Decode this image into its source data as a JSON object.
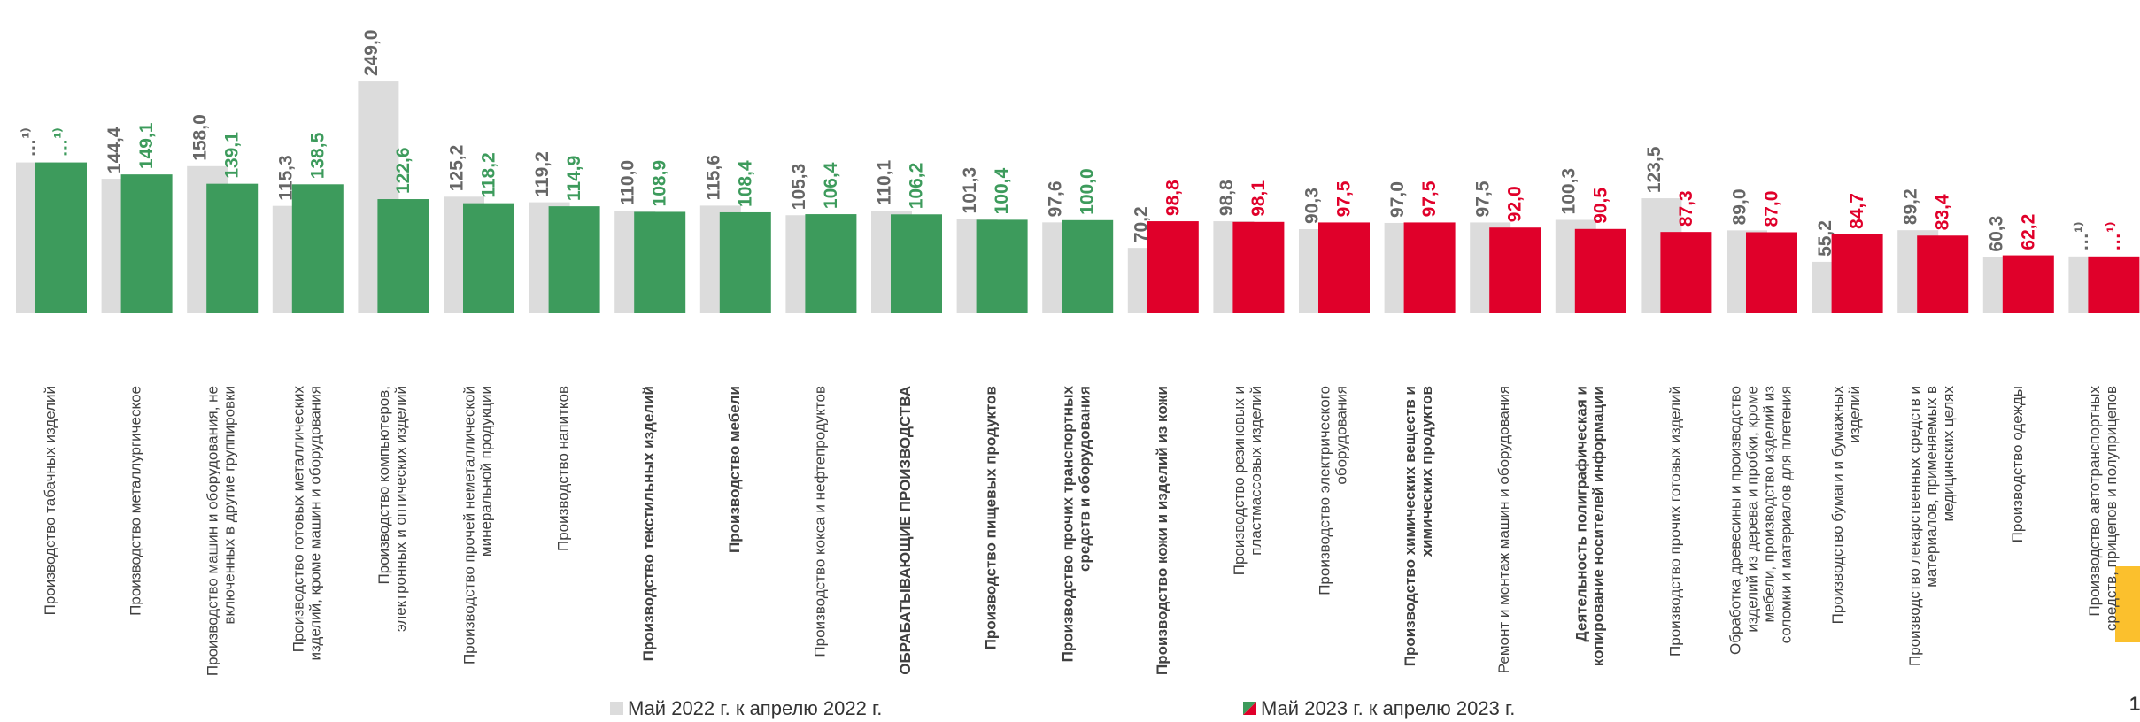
{
  "chart_data": {
    "type": "bar",
    "categories": [
      "Производство табачных изделий",
      "Производство металлургическое",
      "Производство машин и оборудования, не включенных в другие группировки",
      "Производство готовых металлических изделий, кроме машин и оборудования",
      "Производство компьютеров, электронных и оптических изделий",
      "Производство прочей неметаллической минеральной продукции",
      "Производство напитков",
      "Производство текстильных изделий",
      "Производство мебели",
      "Производство кокса и нефтепродуктов",
      "ОБРАБАТЫВАЮЩИЕ ПРОИЗВОДСТВА",
      "Производство пищевых продуктов",
      "Производство прочих транспортных средств и оборудования",
      "Производство кожи и изделий из кожи",
      "Производство резиновых и пластмассовых изделий",
      "Производство электрического оборудования",
      "Производство химических веществ и химических продуктов",
      "Ремонт и монтаж машин и оборудования",
      "Деятельность полиграфическая и копирование носителей информации",
      "Производство прочих готовых изделий",
      "Обработка древесины и производство изделий из дерева и пробки, кроме мебели, производство изделий из соломки и материалов для плетения",
      "Производство бумаги и бумажных изделий",
      "Производство лекарственных средств и материалов, применяемых в медицинских целях",
      "Производство одежды",
      "Производство автотранспортных средств, прицепов и полуприцепов"
    ],
    "bold_categories": [
      7,
      8,
      10,
      11,
      12,
      13,
      16,
      18
    ],
    "series": [
      {
        "name": "Май 2022 г. к апрелю 2022 г.",
        "color": "#dcdcdc",
        "label_color": "#666666",
        "values": [
          162,
          144.4,
          158.0,
          115.3,
          249.0,
          125.2,
          119.2,
          110.0,
          115.6,
          105.3,
          110.1,
          101.3,
          97.6,
          70.2,
          98.8,
          90.3,
          97.0,
          97.5,
          100.3,
          123.5,
          89.0,
          55.2,
          89.2,
          60.3,
          61
        ],
        "value_labels": [
          "…¹⁾",
          "144,4",
          "158,0",
          "115,3",
          "249,0",
          "125,2",
          "119,2",
          "110,0",
          "115,6",
          "105,3",
          "110,1",
          "101,3",
          "97,6",
          "70,2",
          "98,8",
          "90,3",
          "97,0",
          "97,5",
          "100,3",
          "123,5",
          "89,0",
          "55,2",
          "89,2",
          "60,3",
          "…¹⁾"
        ]
      },
      {
        "name": "Май 2023 г. к апрелю 2023 г.",
        "colors": [
          "#3d9b5c",
          "#3d9b5c",
          "#3d9b5c",
          "#3d9b5c",
          "#3d9b5c",
          "#3d9b5c",
          "#3d9b5c",
          "#3d9b5c",
          "#3d9b5c",
          "#3d9b5c",
          "#3d9b5c",
          "#3d9b5c",
          "#3d9b5c",
          "#e0002a",
          "#e0002a",
          "#e0002a",
          "#e0002a",
          "#e0002a",
          "#e0002a",
          "#e0002a",
          "#e0002a",
          "#e0002a",
          "#e0002a",
          "#e0002a",
          "#e0002a"
        ],
        "values": [
          162,
          149.1,
          139.1,
          138.5,
          122.6,
          118.2,
          114.9,
          108.9,
          108.4,
          106.4,
          106.2,
          100.4,
          100.0,
          98.8,
          98.1,
          97.5,
          97.5,
          92.0,
          90.5,
          87.3,
          87.0,
          84.7,
          83.4,
          62.2,
          61
        ],
        "value_labels": [
          "…¹⁾",
          "149,1",
          "139,1",
          "138,5",
          "122,6",
          "118,2",
          "114,9",
          "108,9",
          "108,4",
          "106,4",
          "106,2",
          "100,4",
          "100,0",
          "98,8",
          "98,1",
          "97,5",
          "97,5",
          "92,0",
          "90,5",
          "87,3",
          "87,0",
          "84,7",
          "83,4",
          "62,2",
          "…¹⁾"
        ]
      }
    ],
    "ylim": [
      0,
      250
    ],
    "page_number": "1"
  }
}
